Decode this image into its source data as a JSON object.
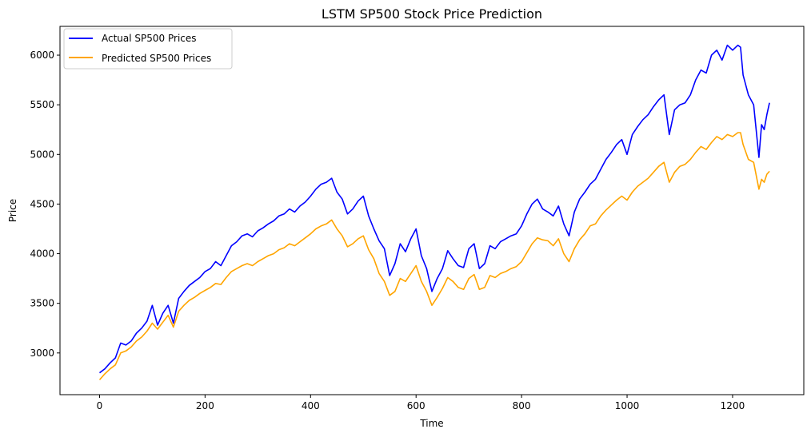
{
  "chart_data": {
    "type": "line",
    "title": "LSTM SP500 Stock Price Prediction",
    "xlabel": "Time",
    "ylabel": "Price",
    "xlim": [
      -75,
      1335
    ],
    "ylim": [
      2580,
      6290
    ],
    "xticks": [
      0,
      200,
      400,
      600,
      800,
      1000,
      1200
    ],
    "yticks": [
      3000,
      3500,
      4000,
      4500,
      5000,
      5500,
      6000
    ],
    "grid": false,
    "legend_position": "top-left",
    "series": [
      {
        "name": "Actual SP500 Prices",
        "color": "#0000ff",
        "x": [
          0,
          10,
          20,
          30,
          40,
          50,
          60,
          70,
          80,
          90,
          100,
          110,
          120,
          130,
          140,
          150,
          160,
          170,
          180,
          190,
          200,
          210,
          220,
          230,
          240,
          250,
          260,
          270,
          280,
          290,
          300,
          310,
          320,
          330,
          340,
          350,
          360,
          370,
          380,
          390,
          400,
          410,
          420,
          430,
          440,
          450,
          460,
          470,
          480,
          490,
          500,
          510,
          520,
          530,
          540,
          550,
          560,
          570,
          580,
          590,
          600,
          610,
          620,
          630,
          640,
          650,
          660,
          670,
          680,
          690,
          700,
          710,
          720,
          730,
          740,
          750,
          760,
          770,
          780,
          790,
          800,
          810,
          820,
          830,
          840,
          850,
          860,
          870,
          880,
          890,
          900,
          910,
          920,
          930,
          940,
          950,
          960,
          970,
          980,
          990,
          1000,
          1010,
          1020,
          1030,
          1040,
          1050,
          1060,
          1070,
          1080,
          1090,
          1100,
          1110,
          1120,
          1130,
          1140,
          1150,
          1160,
          1170,
          1180,
          1190,
          1200,
          1210,
          1215,
          1220,
          1230,
          1240,
          1250,
          1255,
          1260,
          1265,
          1270
        ],
        "values": [
          2800,
          2840,
          2900,
          2950,
          3100,
          3080,
          3120,
          3200,
          3250,
          3320,
          3480,
          3280,
          3400,
          3480,
          3300,
          3550,
          3620,
          3680,
          3720,
          3760,
          3820,
          3850,
          3920,
          3880,
          3980,
          4080,
          4120,
          4180,
          4200,
          4170,
          4230,
          4260,
          4300,
          4330,
          4380,
          4400,
          4450,
          4420,
          4480,
          4520,
          4580,
          4650,
          4700,
          4720,
          4760,
          4620,
          4550,
          4400,
          4450,
          4530,
          4580,
          4380,
          4250,
          4130,
          4050,
          3780,
          3900,
          4100,
          4020,
          4150,
          4250,
          3980,
          3850,
          3620,
          3750,
          3850,
          4030,
          3950,
          3880,
          3860,
          4050,
          4100,
          3850,
          3900,
          4080,
          4050,
          4120,
          4150,
          4180,
          4200,
          4280,
          4400,
          4500,
          4550,
          4450,
          4420,
          4380,
          4480,
          4300,
          4180,
          4420,
          4550,
          4620,
          4700,
          4750,
          4850,
          4950,
          5020,
          5100,
          5150,
          5000,
          5200,
          5280,
          5350,
          5400,
          5480,
          5550,
          5600,
          5200,
          5450,
          5500,
          5520,
          5600,
          5750,
          5850,
          5820,
          6000,
          6050,
          5950,
          6100,
          6050,
          6100,
          6080,
          5800,
          5600,
          5500,
          4970,
          5300,
          5250,
          5400,
          5520
        ]
      },
      {
        "name": "Predicted SP500 Prices",
        "color": "#ffa500",
        "x": [
          0,
          10,
          20,
          30,
          40,
          50,
          60,
          70,
          80,
          90,
          100,
          110,
          120,
          130,
          140,
          150,
          160,
          170,
          180,
          190,
          200,
          210,
          220,
          230,
          240,
          250,
          260,
          270,
          280,
          290,
          300,
          310,
          320,
          330,
          340,
          350,
          360,
          370,
          380,
          390,
          400,
          410,
          420,
          430,
          440,
          450,
          460,
          470,
          480,
          490,
          500,
          510,
          520,
          530,
          540,
          550,
          560,
          570,
          580,
          590,
          600,
          610,
          620,
          630,
          640,
          650,
          660,
          670,
          680,
          690,
          700,
          710,
          720,
          730,
          740,
          750,
          760,
          770,
          780,
          790,
          800,
          810,
          820,
          830,
          840,
          850,
          860,
          870,
          880,
          890,
          900,
          910,
          920,
          930,
          940,
          950,
          960,
          970,
          980,
          990,
          1000,
          1010,
          1020,
          1030,
          1040,
          1050,
          1060,
          1070,
          1080,
          1090,
          1100,
          1110,
          1120,
          1130,
          1140,
          1150,
          1160,
          1170,
          1180,
          1190,
          1200,
          1210,
          1215,
          1220,
          1230,
          1240,
          1250,
          1255,
          1260,
          1265,
          1270
        ],
        "values": [
          2730,
          2790,
          2840,
          2880,
          3000,
          3020,
          3060,
          3120,
          3160,
          3220,
          3300,
          3240,
          3310,
          3380,
          3260,
          3420,
          3480,
          3530,
          3560,
          3600,
          3630,
          3660,
          3700,
          3690,
          3760,
          3820,
          3850,
          3880,
          3900,
          3880,
          3920,
          3950,
          3980,
          4000,
          4040,
          4060,
          4100,
          4080,
          4120,
          4160,
          4200,
          4250,
          4280,
          4300,
          4340,
          4250,
          4180,
          4070,
          4100,
          4150,
          4180,
          4040,
          3950,
          3800,
          3720,
          3580,
          3620,
          3750,
          3720,
          3800,
          3880,
          3720,
          3620,
          3480,
          3560,
          3650,
          3760,
          3720,
          3660,
          3640,
          3750,
          3790,
          3640,
          3660,
          3780,
          3760,
          3800,
          3820,
          3850,
          3870,
          3920,
          4010,
          4100,
          4160,
          4140,
          4130,
          4080,
          4150,
          4000,
          3920,
          4050,
          4140,
          4200,
          4280,
          4300,
          4380,
          4440,
          4490,
          4540,
          4580,
          4540,
          4620,
          4680,
          4720,
          4760,
          4820,
          4880,
          4920,
          4720,
          4820,
          4880,
          4900,
          4950,
          5020,
          5080,
          5050,
          5120,
          5180,
          5150,
          5200,
          5180,
          5220,
          5220,
          5100,
          4950,
          4920,
          4650,
          4750,
          4720,
          4800,
          4830
        ]
      }
    ]
  }
}
